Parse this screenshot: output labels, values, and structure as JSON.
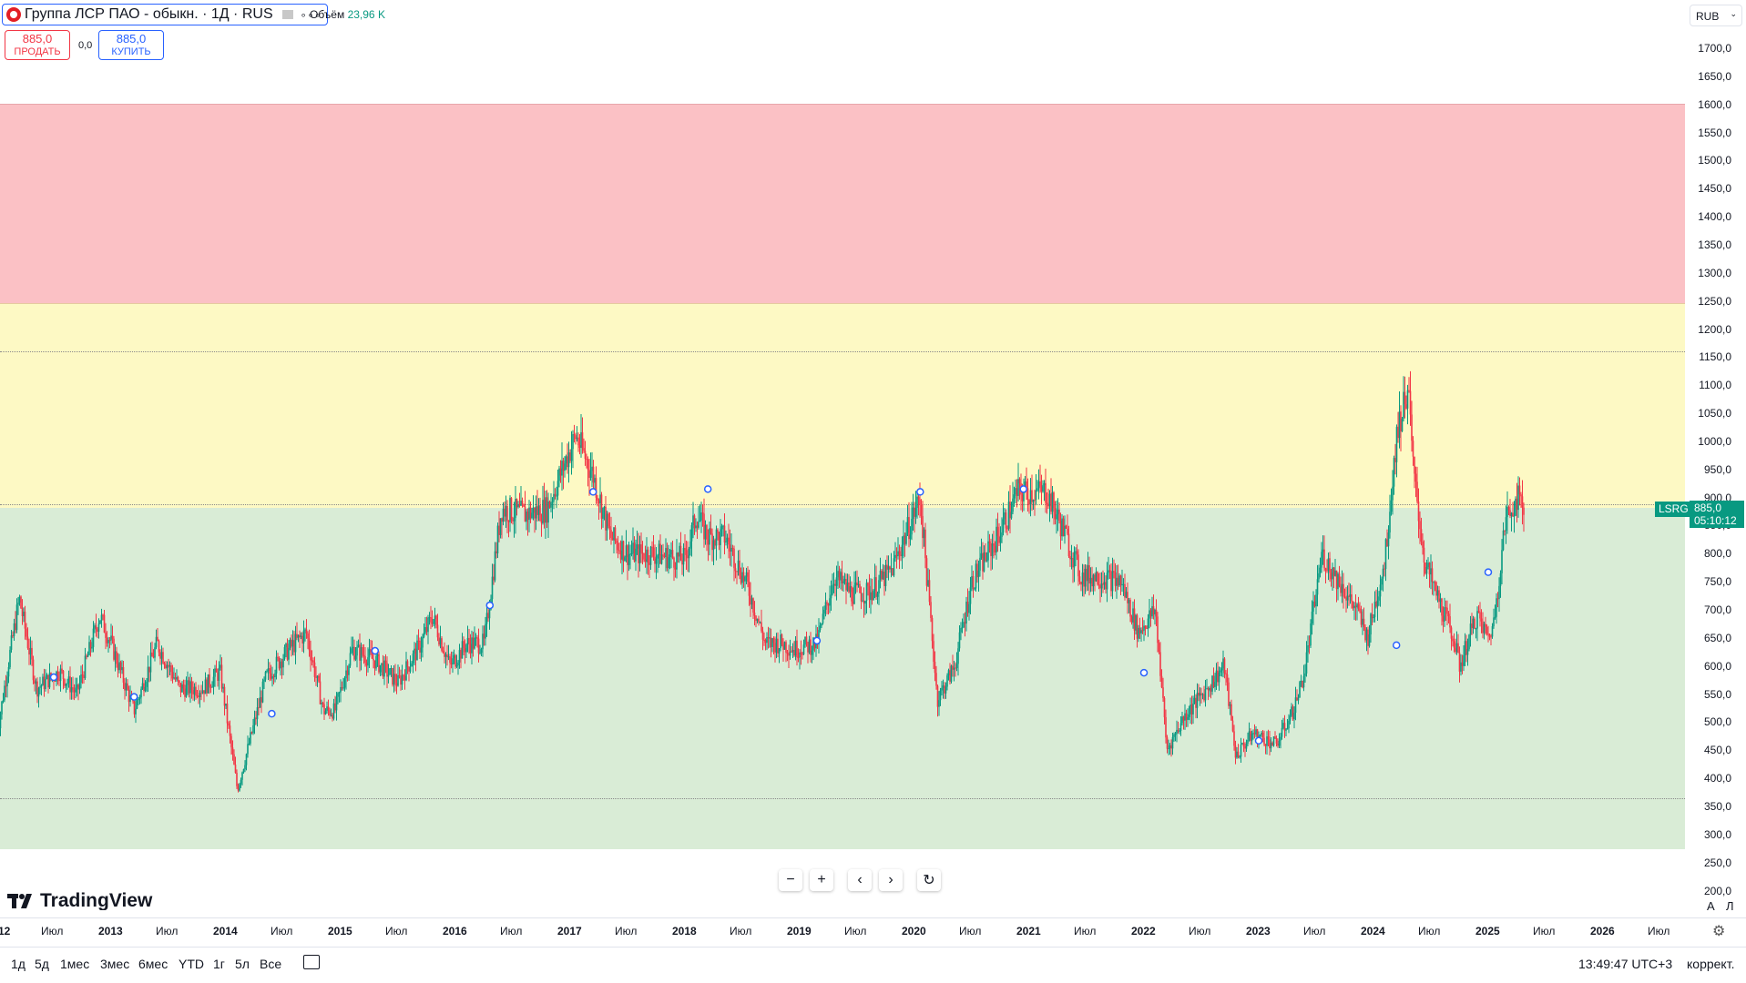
{
  "symbol": {
    "title": "Группа ЛСР ПАО - обыкн. · 1Д · RUS",
    "more": "∘∘∘",
    "volume_label": "Объём",
    "volume_value": "23,96 K"
  },
  "trade": {
    "sell_price": "885,0",
    "sell_label": "ПРОДАТЬ",
    "spread": "0,0",
    "buy_price": "885,0",
    "buy_label": "КУПИТЬ"
  },
  "currency": "RUB",
  "last_price": {
    "ticker": "LSRG",
    "price": "885,0",
    "countdown": "05:10:12"
  },
  "price_axis": [
    "1700,0",
    "1650,0",
    "1600,0",
    "1550,0",
    "1500,0",
    "1450,0",
    "1400,0",
    "1350,0",
    "1300,0",
    "1250,0",
    "1200,0",
    "1150,0",
    "1100,0",
    "1050,0",
    "1000,0",
    "950,0",
    "900,0",
    "850,0",
    "800,0",
    "750,0",
    "700,0",
    "650,0",
    "600,0",
    "550,0",
    "500,0",
    "450,0",
    "400,0",
    "350,0",
    "300,0",
    "250,0",
    "200,0"
  ],
  "time_axis": [
    {
      "label": "12",
      "bold": true
    },
    {
      "label": "Июл",
      "bold": false
    },
    {
      "label": "2013",
      "bold": true
    },
    {
      "label": "Июл",
      "bold": false
    },
    {
      "label": "2014",
      "bold": true
    },
    {
      "label": "Июл",
      "bold": false
    },
    {
      "label": "2015",
      "bold": true
    },
    {
      "label": "Июл",
      "bold": false
    },
    {
      "label": "2016",
      "bold": true
    },
    {
      "label": "Июл",
      "bold": false
    },
    {
      "label": "2017",
      "bold": true
    },
    {
      "label": "Июл",
      "bold": false
    },
    {
      "label": "2018",
      "bold": true
    },
    {
      "label": "Июл",
      "bold": false
    },
    {
      "label": "2019",
      "bold": true
    },
    {
      "label": "Июл",
      "bold": false
    },
    {
      "label": "2020",
      "bold": true
    },
    {
      "label": "Июл",
      "bold": false
    },
    {
      "label": "2021",
      "bold": true
    },
    {
      "label": "Июл",
      "bold": false
    },
    {
      "label": "2022",
      "bold": true
    },
    {
      "label": "Июл",
      "bold": false
    },
    {
      "label": "2023",
      "bold": true
    },
    {
      "label": "Июл",
      "bold": false
    },
    {
      "label": "2024",
      "bold": true
    },
    {
      "label": "Июл",
      "bold": false
    },
    {
      "label": "2025",
      "bold": true
    },
    {
      "label": "Июл",
      "bold": false
    },
    {
      "label": "2026",
      "bold": true
    },
    {
      "label": "Июл",
      "bold": false
    }
  ],
  "ranges": [
    "1д",
    "5д",
    "1мес",
    "3мес",
    "6мес",
    "YTD",
    "1г",
    "5л",
    "Все"
  ],
  "clock": "13:49:47 UTC+3",
  "adjust_label": "коррект.",
  "scale_buttons": {
    "auto": "A",
    "log": "Л"
  },
  "brand": "TradingView",
  "zones": [
    {
      "name": "sell-zone",
      "color": "#fbc1c5",
      "from": 1245,
      "to": 1600
    },
    {
      "name": "neutral-zone",
      "color": "#fdf9c4",
      "from": 890,
      "to": 1245
    },
    {
      "name": "buy-zone",
      "color": "#d9ecd6",
      "from": 280,
      "to": 890
    }
  ],
  "levels": [
    1160,
    888,
    365
  ],
  "colors": {
    "up": "#089981",
    "down": "#f23645",
    "accent": "#2962ff"
  },
  "chart_data": {
    "type": "candlestick",
    "ylim": [
      200,
      1750
    ],
    "x": [
      2012.0,
      2026.5
    ],
    "key_points": [
      [
        2012.0,
        470
      ],
      [
        2012.1,
        600
      ],
      [
        2012.2,
        720
      ],
      [
        2012.35,
        560
      ],
      [
        2012.55,
        590
      ],
      [
        2012.7,
        550
      ],
      [
        2012.9,
        690
      ],
      [
        2013.0,
        640
      ],
      [
        2013.2,
        520
      ],
      [
        2013.4,
        640
      ],
      [
        2013.6,
        560
      ],
      [
        2013.8,
        560
      ],
      [
        2013.95,
        590
      ],
      [
        2014.1,
        380
      ],
      [
        2014.2,
        460
      ],
      [
        2014.35,
        580
      ],
      [
        2014.55,
        630
      ],
      [
        2014.7,
        660
      ],
      [
        2014.85,
        520
      ],
      [
        2014.95,
        520
      ],
      [
        2015.1,
        630
      ],
      [
        2015.3,
        610
      ],
      [
        2015.5,
        570
      ],
      [
        2015.7,
        640
      ],
      [
        2015.8,
        690
      ],
      [
        2015.95,
        600
      ],
      [
        2016.1,
        640
      ],
      [
        2016.25,
        640
      ],
      [
        2016.4,
        880
      ],
      [
        2016.6,
        870
      ],
      [
        2016.8,
        880
      ],
      [
        2016.95,
        960
      ],
      [
        2017.05,
        1010
      ],
      [
        2017.2,
        940
      ],
      [
        2017.35,
        830
      ],
      [
        2017.5,
        800
      ],
      [
        2017.7,
        800
      ],
      [
        2018.0,
        790
      ],
      [
        2018.1,
        870
      ],
      [
        2018.2,
        830
      ],
      [
        2018.35,
        830
      ],
      [
        2018.55,
        740
      ],
      [
        2018.7,
        640
      ],
      [
        2018.85,
        640
      ],
      [
        2018.95,
        630
      ],
      [
        2019.15,
        640
      ],
      [
        2019.3,
        760
      ],
      [
        2019.45,
        730
      ],
      [
        2019.6,
        730
      ],
      [
        2019.8,
        770
      ],
      [
        2020.05,
        900
      ],
      [
        2020.2,
        540
      ],
      [
        2020.35,
        600
      ],
      [
        2020.5,
        750
      ],
      [
        2020.75,
        840
      ],
      [
        2020.9,
        910
      ],
      [
        2021.15,
        910
      ],
      [
        2021.3,
        840
      ],
      [
        2021.45,
        760
      ],
      [
        2021.6,
        760
      ],
      [
        2021.8,
        750
      ],
      [
        2021.95,
        660
      ],
      [
        2022.1,
        700
      ],
      [
        2022.2,
        450
      ],
      [
        2022.35,
        510
      ],
      [
        2022.55,
        560
      ],
      [
        2022.7,
        600
      ],
      [
        2022.8,
        440
      ],
      [
        2022.95,
        480
      ],
      [
        2023.15,
        460
      ],
      [
        2023.3,
        520
      ],
      [
        2023.4,
        590
      ],
      [
        2023.55,
        800
      ],
      [
        2023.7,
        750
      ],
      [
        2023.85,
        700
      ],
      [
        2023.95,
        650
      ],
      [
        2024.1,
        790
      ],
      [
        2024.2,
        1010
      ],
      [
        2024.3,
        1100
      ],
      [
        2024.35,
        940
      ],
      [
        2024.45,
        780
      ],
      [
        2024.6,
        700
      ],
      [
        2024.7,
        650
      ],
      [
        2024.75,
        600
      ],
      [
        2024.9,
        690
      ],
      [
        2025.0,
        650
      ],
      [
        2025.05,
        680
      ],
      [
        2025.15,
        860
      ],
      [
        2025.25,
        900
      ],
      [
        2025.3,
        885
      ]
    ],
    "markers": [
      [
        2012.5,
        580
      ],
      [
        2013.2,
        545
      ],
      [
        2014.4,
        515
      ],
      [
        2015.3,
        627
      ],
      [
        2016.3,
        708
      ],
      [
        2017.2,
        910
      ],
      [
        2018.2,
        915
      ],
      [
        2019.15,
        645
      ],
      [
        2020.05,
        910
      ],
      [
        2020.95,
        915
      ],
      [
        2022.0,
        588
      ],
      [
        2023.0,
        467
      ],
      [
        2024.2,
        637
      ],
      [
        2025.0,
        767
      ]
    ]
  }
}
